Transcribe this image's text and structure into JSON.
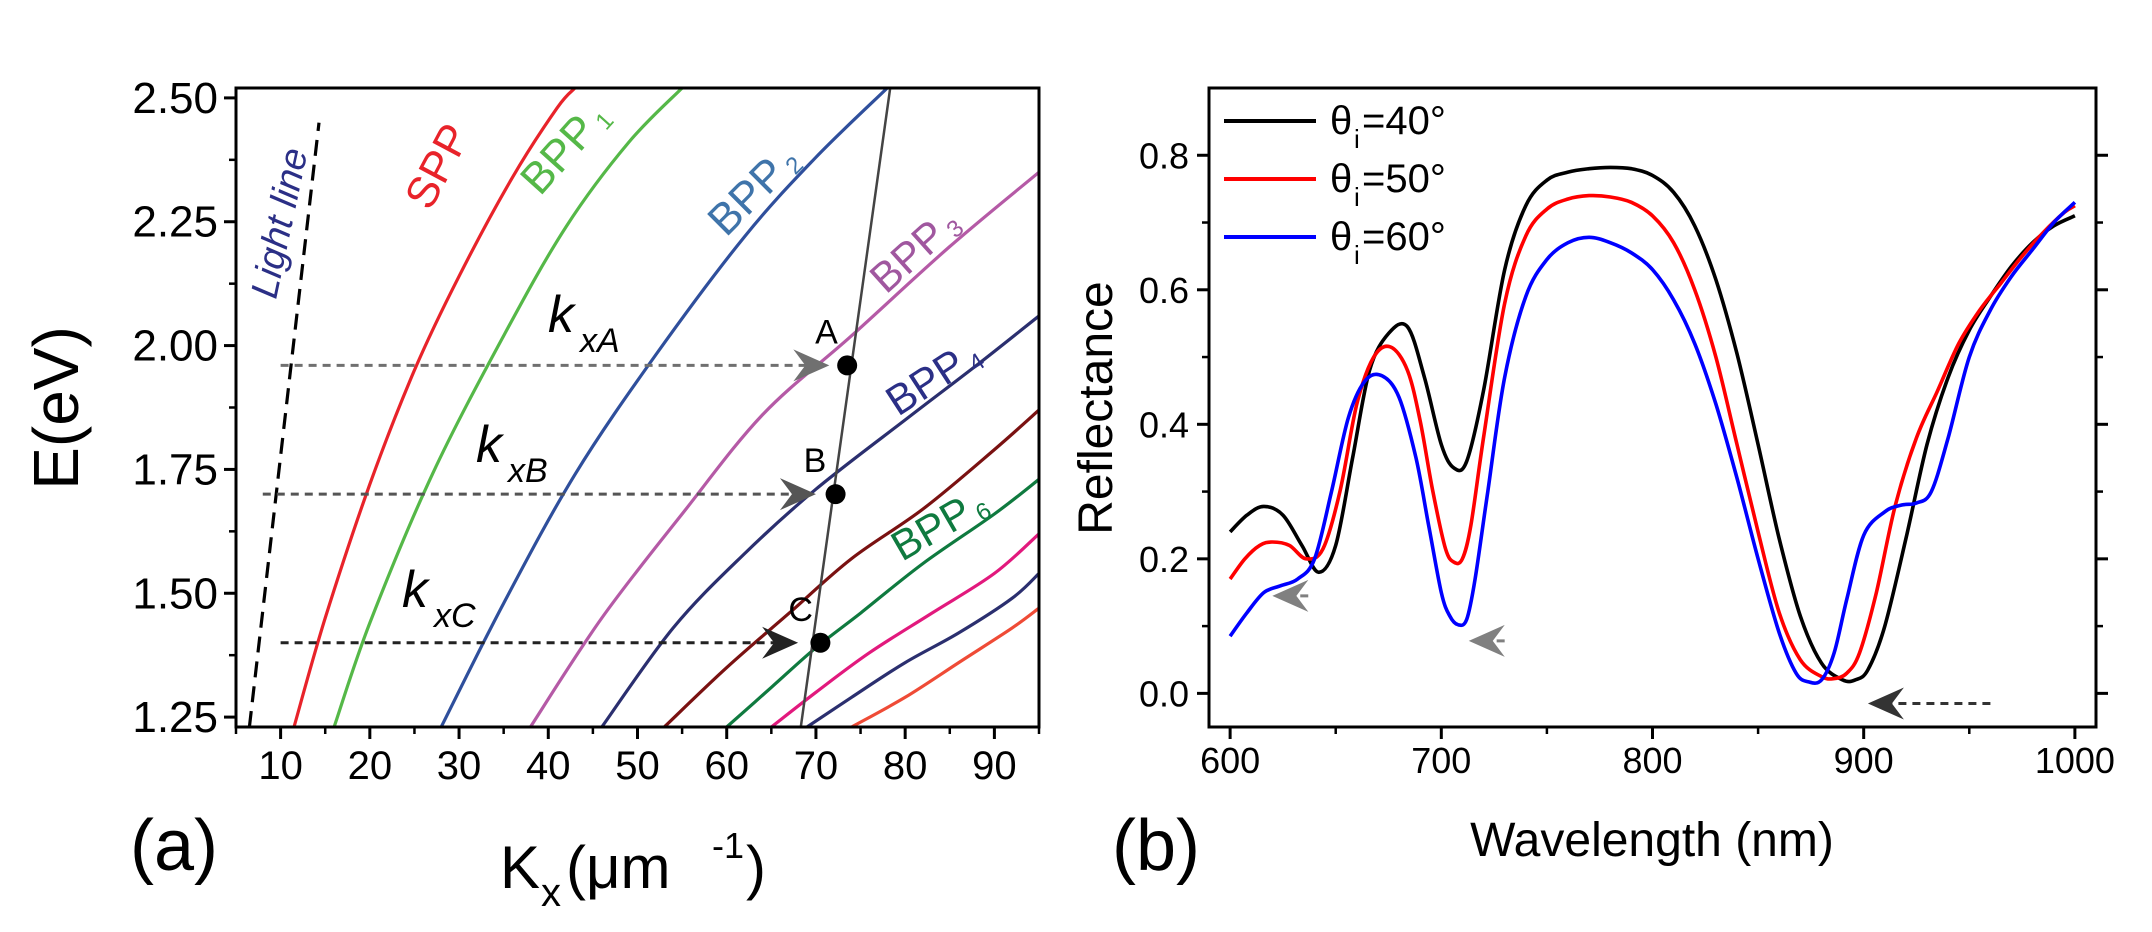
{
  "chart_data": [
    {
      "type": "line",
      "panel_label": "(a)",
      "xlabel": "K",
      "xlabel_sub": "x",
      "xlabel_unit": "(μm",
      "xlabel_sup": "-1",
      "xlabel_close": ")",
      "ylabel": "E(eV)",
      "xlim": [
        5,
        95
      ],
      "ylim": [
        1.23,
        2.52
      ],
      "xticks": [
        "10",
        "20",
        "30",
        "40",
        "50",
        "60",
        "70",
        "80",
        "90"
      ],
      "xtick_values": [
        10,
        20,
        30,
        40,
        50,
        60,
        70,
        80,
        90
      ],
      "yticks": [
        "1.25",
        "1.50",
        "1.75",
        "2.00",
        "2.25",
        "2.50"
      ],
      "ytick_values": [
        1.25,
        1.5,
        1.75,
        2.0,
        2.25,
        2.5
      ],
      "series": [
        {
          "name": "Light line",
          "label": "Light line",
          "style": "dashed",
          "color": "#000000",
          "label_color": "#2b2f86",
          "x": [
            6.5,
            14.3
          ],
          "y": [
            1.23,
            2.45
          ]
        },
        {
          "name": "SPP",
          "label": "SPP",
          "color": "#e8232a",
          "label_color": "#e8232a",
          "x": [
            11.5,
            15,
            20,
            25,
            30,
            36,
            41,
            43
          ],
          "y": [
            1.23,
            1.45,
            1.72,
            1.95,
            2.14,
            2.34,
            2.48,
            2.52
          ]
        },
        {
          "name": "BPP1",
          "label": "BPP",
          "label_sub": "1",
          "color": "#55b848",
          "label_color": "#55b848",
          "x": [
            16,
            20,
            27,
            35,
            42,
            49,
            55
          ],
          "y": [
            1.23,
            1.44,
            1.74,
            2.02,
            2.24,
            2.41,
            2.52
          ]
        },
        {
          "name": "BPP2",
          "label": "BPP",
          "label_sub": "2",
          "color": "#2f4f9c",
          "label_color": "#3f74aa",
          "x": [
            28,
            35,
            43,
            52,
            62,
            70,
            78
          ],
          "y": [
            1.23,
            1.48,
            1.74,
            1.98,
            2.22,
            2.38,
            2.52
          ]
        },
        {
          "name": "BPP3",
          "label": "BPP",
          "label_sub": "3",
          "color": "#b55aa6",
          "label_color": "#a0579f",
          "x": [
            38,
            46,
            55,
            64,
            74,
            85,
            95
          ],
          "y": [
            1.23,
            1.45,
            1.66,
            1.86,
            2.02,
            2.2,
            2.35
          ]
        },
        {
          "name": "BPP4",
          "label": "BPP",
          "label_sub": "4",
          "color": "#2b2f6f",
          "label_color": "#2b2f86",
          "x": [
            46,
            54,
            62,
            70,
            80,
            88,
            95
          ],
          "y": [
            1.23,
            1.43,
            1.58,
            1.71,
            1.85,
            1.96,
            2.06
          ]
        },
        {
          "name": "BPP5",
          "color": "#7a1111",
          "x": [
            53,
            60,
            67,
            74,
            82,
            90,
            95
          ],
          "y": [
            1.23,
            1.35,
            1.46,
            1.57,
            1.67,
            1.79,
            1.87
          ]
        },
        {
          "name": "BPP6",
          "label": "BPP",
          "label_sub": "6",
          "color": "#0f7a3f",
          "label_color": "#0f7a3f",
          "x": [
            60,
            65,
            70,
            75,
            82,
            90,
            95
          ],
          "y": [
            1.23,
            1.31,
            1.39,
            1.46,
            1.56,
            1.66,
            1.73
          ]
        },
        {
          "name": "BPP7",
          "color": "#e2197d",
          "x": [
            65,
            70,
            76,
            83,
            90,
            95
          ],
          "y": [
            1.23,
            1.3,
            1.38,
            1.46,
            1.54,
            1.62
          ]
        },
        {
          "name": "BPP8",
          "color": "#2b2f6f",
          "x": [
            69,
            74,
            80,
            86,
            92,
            95
          ],
          "y": [
            1.23,
            1.29,
            1.36,
            1.42,
            1.49,
            1.54
          ]
        },
        {
          "name": "BPP9",
          "color": "#ef4b36",
          "x": [
            74,
            80,
            86,
            92,
            95
          ],
          "y": [
            1.23,
            1.29,
            1.36,
            1.43,
            1.47
          ]
        },
        {
          "name": "Oblique line",
          "color": "#444444",
          "x": [
            68.3,
            78.4
          ],
          "y": [
            1.23,
            2.53
          ]
        }
      ],
      "points": [
        {
          "label": "A",
          "x": 73.5,
          "y": 1.96
        },
        {
          "label": "B",
          "x": 72.2,
          "y": 1.7
        },
        {
          "label": "C",
          "x": 70.5,
          "y": 1.4
        }
      ],
      "wavevector_labels": [
        {
          "name": "k",
          "sub": "xA",
          "x": 41,
          "y": 1.99
        },
        {
          "name": "k",
          "sub": "xB",
          "x": 33,
          "y": 1.74
        },
        {
          "name": "k",
          "sub": "xC",
          "x": 26,
          "y": 1.45
        }
      ],
      "arrows": [
        {
          "from_x": 10,
          "to_x": 71.5,
          "y": 1.96,
          "color": "#707070"
        },
        {
          "from_x": 8,
          "to_x": 70,
          "y": 1.7,
          "color": "#555555"
        },
        {
          "from_x": 10,
          "to_x": 68,
          "y": 1.4,
          "color": "#222222"
        }
      ]
    },
    {
      "type": "line",
      "panel_label": "(b)",
      "xlabel": "Wavelength (nm)",
      "ylabel": "Reflectance",
      "xlim": [
        590,
        1010
      ],
      "ylim": [
        -0.05,
        0.9
      ],
      "xticks": [
        "600",
        "700",
        "800",
        "900",
        "1000"
      ],
      "xtick_values": [
        600,
        700,
        800,
        900,
        1000
      ],
      "yticks": [
        "0.0",
        "0.2",
        "0.4",
        "0.6",
        "0.8"
      ],
      "ytick_values": [
        0,
        0.2,
        0.4,
        0.6,
        0.8
      ],
      "legend_position": "top-left",
      "series": [
        {
          "name": "θi=40°",
          "legend_symbol": "θ",
          "legend_sub": "i",
          "legend_value": "=40°",
          "color": "#000000",
          "x": [
            600,
            608,
            616,
            625,
            634,
            642,
            650,
            658,
            666,
            675,
            684,
            692,
            700,
            706,
            712,
            720,
            730,
            740,
            750,
            760,
            770,
            780,
            790,
            800,
            810,
            820,
            830,
            840,
            850,
            860,
            870,
            880,
            890,
            896,
            902,
            910,
            920,
            930,
            940,
            950,
            960,
            970,
            980,
            990,
            1000
          ],
          "y": [
            0.24,
            0.265,
            0.278,
            0.265,
            0.22,
            0.18,
            0.22,
            0.35,
            0.48,
            0.535,
            0.545,
            0.47,
            0.37,
            0.335,
            0.345,
            0.45,
            0.63,
            0.725,
            0.763,
            0.775,
            0.78,
            0.782,
            0.78,
            0.77,
            0.745,
            0.695,
            0.615,
            0.505,
            0.37,
            0.23,
            0.115,
            0.045,
            0.02,
            0.02,
            0.035,
            0.1,
            0.23,
            0.37,
            0.47,
            0.54,
            0.59,
            0.635,
            0.67,
            0.695,
            0.71
          ]
        },
        {
          "name": "θi=50°",
          "legend_symbol": "θ",
          "legend_sub": "i",
          "legend_value": "=50°",
          "color": "#ff0000",
          "x": [
            600,
            607,
            614,
            620,
            628,
            636,
            644,
            652,
            660,
            668,
            676,
            684,
            690,
            696,
            702,
            706,
            710,
            714,
            720,
            730,
            740,
            750,
            760,
            770,
            780,
            790,
            800,
            810,
            820,
            830,
            840,
            850,
            860,
            870,
            880,
            886,
            892,
            898,
            906,
            915,
            925,
            935,
            945,
            955,
            965,
            975,
            985,
            995,
            1000
          ],
          "y": [
            0.17,
            0.2,
            0.22,
            0.225,
            0.22,
            0.2,
            0.215,
            0.3,
            0.43,
            0.5,
            0.515,
            0.48,
            0.405,
            0.3,
            0.215,
            0.195,
            0.2,
            0.25,
            0.38,
            0.58,
            0.68,
            0.72,
            0.735,
            0.74,
            0.738,
            0.73,
            0.71,
            0.67,
            0.6,
            0.5,
            0.37,
            0.24,
            0.12,
            0.05,
            0.025,
            0.022,
            0.03,
            0.06,
            0.15,
            0.28,
            0.38,
            0.45,
            0.52,
            0.57,
            0.61,
            0.65,
            0.685,
            0.715,
            0.725
          ]
        },
        {
          "name": "θi=60°",
          "legend_symbol": "θ",
          "legend_sub": "i",
          "legend_value": "=60°",
          "color": "#0000ff",
          "x": [
            600,
            608,
            616,
            624,
            632,
            640,
            648,
            656,
            664,
            672,
            680,
            688,
            694,
            700,
            704,
            708,
            712,
            716,
            722,
            730,
            740,
            750,
            760,
            770,
            780,
            790,
            800,
            810,
            820,
            830,
            840,
            850,
            860,
            868,
            874,
            880,
            886,
            892,
            900,
            910,
            918,
            925,
            932,
            940,
            950,
            960,
            970,
            980,
            990,
            1000
          ],
          "y": [
            0.085,
            0.12,
            0.15,
            0.16,
            0.17,
            0.2,
            0.3,
            0.41,
            0.465,
            0.472,
            0.44,
            0.35,
            0.25,
            0.15,
            0.115,
            0.102,
            0.11,
            0.17,
            0.3,
            0.47,
            0.59,
            0.645,
            0.67,
            0.678,
            0.67,
            0.655,
            0.63,
            0.585,
            0.52,
            0.43,
            0.32,
            0.2,
            0.09,
            0.03,
            0.017,
            0.02,
            0.06,
            0.14,
            0.235,
            0.27,
            0.28,
            0.283,
            0.3,
            0.38,
            0.5,
            0.57,
            0.62,
            0.66,
            0.7,
            0.73
          ]
        }
      ],
      "arrows": [
        {
          "from_x": 637,
          "to_x": 620,
          "y": 0.145,
          "color": "#808080"
        },
        {
          "from_x": 730,
          "to_x": 713,
          "y": 0.078,
          "color": "#808080"
        },
        {
          "from_x": 960,
          "to_x": 902,
          "y": -0.015,
          "color": "#333333"
        }
      ]
    }
  ]
}
